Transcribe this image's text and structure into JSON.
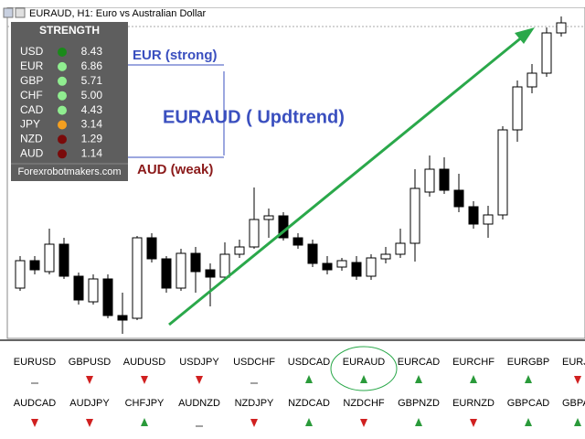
{
  "window": {
    "title": "EURAUD, H1:  Euro vs Australian Dollar"
  },
  "strength": {
    "title": "STRENGTH",
    "footer": "Forexrobotmakers.com",
    "rows": [
      {
        "currency": "USD",
        "value": "8.43",
        "color": "#1a8a1a"
      },
      {
        "currency": "EUR",
        "value": "6.86",
        "color": "#90ee90"
      },
      {
        "currency": "GBP",
        "value": "5.71",
        "color": "#90ee90"
      },
      {
        "currency": "CHF",
        "value": "5.00",
        "color": "#90ee90"
      },
      {
        "currency": "CAD",
        "value": "4.43",
        "color": "#90ee90"
      },
      {
        "currency": "JPY",
        "value": "3.14",
        "color": "#f5a020"
      },
      {
        "currency": "NZD",
        "value": "1.29",
        "color": "#7a0a0a"
      },
      {
        "currency": "AUD",
        "value": "1.14",
        "color": "#7a0a0a"
      }
    ]
  },
  "annotations": {
    "strong": "EUR (strong)",
    "trend": "EURAUD ( Updtrend)",
    "weak": "AUD (weak)"
  },
  "pairs": [
    [
      {
        "name": "EURUSD",
        "signal": "flat"
      },
      {
        "name": "GBPUSD",
        "signal": "down"
      },
      {
        "name": "AUDUSD",
        "signal": "down"
      },
      {
        "name": "USDJPY",
        "signal": "down"
      },
      {
        "name": "USDCHF",
        "signal": "flat"
      },
      {
        "name": "USDCAD",
        "signal": "up"
      },
      {
        "name": "EURAUD",
        "signal": "up"
      },
      {
        "name": "EURCAD",
        "signal": "up"
      },
      {
        "name": "EURCHF",
        "signal": "up"
      },
      {
        "name": "EURGBP",
        "signal": "up"
      },
      {
        "name": "EURJ",
        "signal": "down"
      }
    ],
    [
      {
        "name": "AUDCAD",
        "signal": "down"
      },
      {
        "name": "AUDJPY",
        "signal": "down"
      },
      {
        "name": "CHFJPY",
        "signal": "up"
      },
      {
        "name": "AUDNZD",
        "signal": "flat"
      },
      {
        "name": "NZDJPY",
        "signal": "down"
      },
      {
        "name": "NZDCAD",
        "signal": "up"
      },
      {
        "name": "NZDCHF",
        "signal": "down"
      },
      {
        "name": "GBPNZD",
        "signal": "up"
      },
      {
        "name": "EURNZD",
        "signal": "down"
      },
      {
        "name": "GBPCAD",
        "signal": "up"
      },
      {
        "name": "GBPA",
        "signal": "up"
      }
    ]
  ]
}
